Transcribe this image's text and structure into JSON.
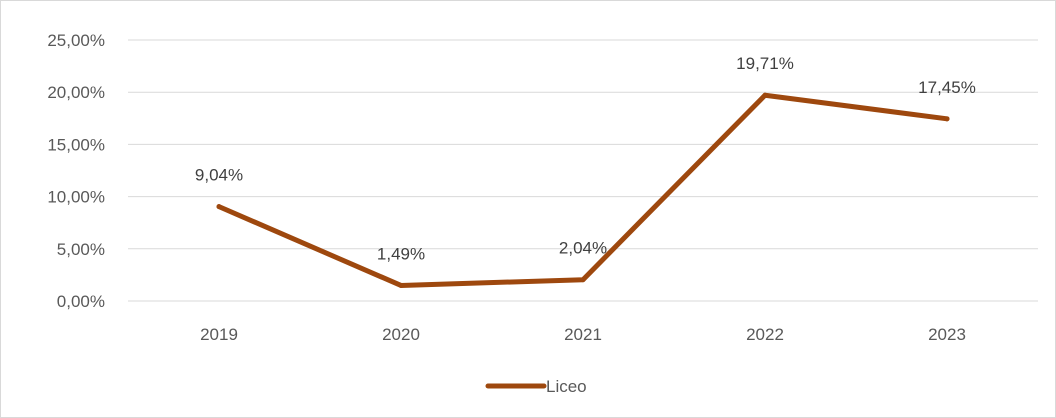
{
  "chart_data": {
    "type": "line",
    "title": "",
    "xlabel": "",
    "ylabel": "",
    "categories": [
      "2019",
      "2020",
      "2021",
      "2022",
      "2023"
    ],
    "series": [
      {
        "name": "Liceo",
        "values": [
          9.04,
          1.49,
          2.04,
          19.71,
          17.45
        ],
        "labels": [
          "9,04%",
          "1,49%",
          "2,04%",
          "19,71%",
          "17,45%"
        ],
        "color": "#9e480e"
      }
    ],
    "ylim": [
      0,
      25
    ],
    "yticks": [
      0,
      5,
      10,
      15,
      20,
      25
    ],
    "ytick_labels": [
      "0,00%",
      "5,00%",
      "10,00%",
      "15,00%",
      "20,00%",
      "25,00%"
    ],
    "grid": true,
    "gridline_color": "#d9d9d9",
    "legend_position": "bottom"
  }
}
